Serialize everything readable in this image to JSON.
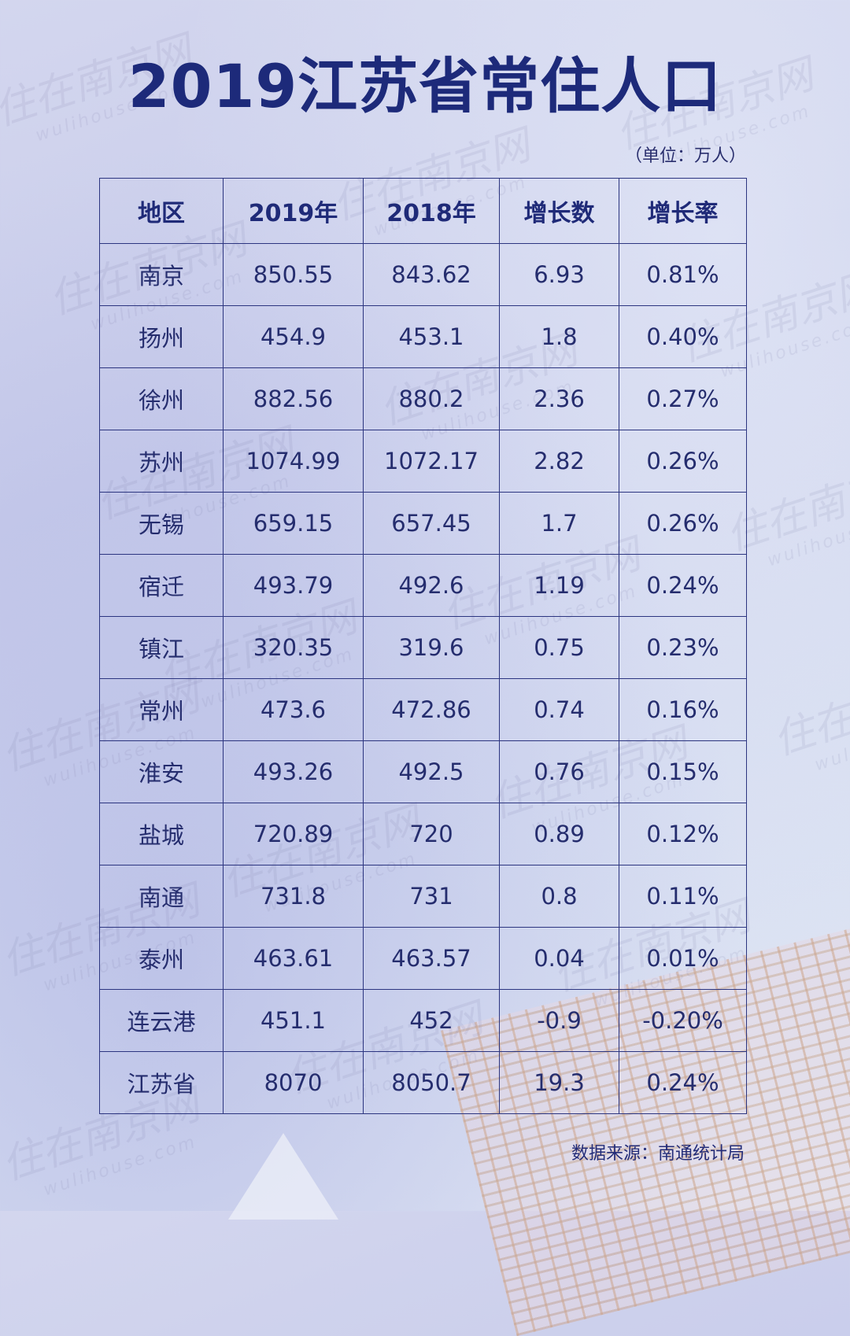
{
  "title": "2019江苏省常住人口",
  "unit_note": "（单位：万人）",
  "source": "数据来源：南通统计局",
  "watermark": {
    "text": "住在南京网",
    "url": "wulihouse.com"
  },
  "colors": {
    "title": "#1d2a7a",
    "border": "#2c3580",
    "text": "#252d6e"
  },
  "chart_data": {
    "type": "table",
    "title": "2019江苏省常住人口",
    "columns": [
      "地区",
      "2019年",
      "2018年",
      "增长数",
      "增长率"
    ],
    "rows": [
      [
        "南京",
        "850.55",
        "843.62",
        "6.93",
        "0.81%"
      ],
      [
        "扬州",
        "454.9",
        "453.1",
        "1.8",
        "0.40%"
      ],
      [
        "徐州",
        "882.56",
        "880.2",
        "2.36",
        "0.27%"
      ],
      [
        "苏州",
        "1074.99",
        "1072.17",
        "2.82",
        "0.26%"
      ],
      [
        "无锡",
        "659.15",
        "657.45",
        "1.7",
        "0.26%"
      ],
      [
        "宿迁",
        "493.79",
        "492.6",
        "1.19",
        "0.24%"
      ],
      [
        "镇江",
        "320.35",
        "319.6",
        "0.75",
        "0.23%"
      ],
      [
        "常州",
        "473.6",
        "472.86",
        "0.74",
        "0.16%"
      ],
      [
        "淮安",
        "493.26",
        "492.5",
        "0.76",
        "0.15%"
      ],
      [
        "盐城",
        "720.89",
        "720",
        "0.89",
        "0.12%"
      ],
      [
        "南通",
        "731.8",
        "731",
        "0.8",
        "0.11%"
      ],
      [
        "泰州",
        "463.61",
        "463.57",
        "0.04",
        "0.01%"
      ],
      [
        "连云港",
        "451.1",
        "452",
        "-0.9",
        "-0.20%"
      ],
      [
        "江苏省",
        "8070",
        "8050.7",
        "19.3",
        "0.24%"
      ]
    ]
  }
}
